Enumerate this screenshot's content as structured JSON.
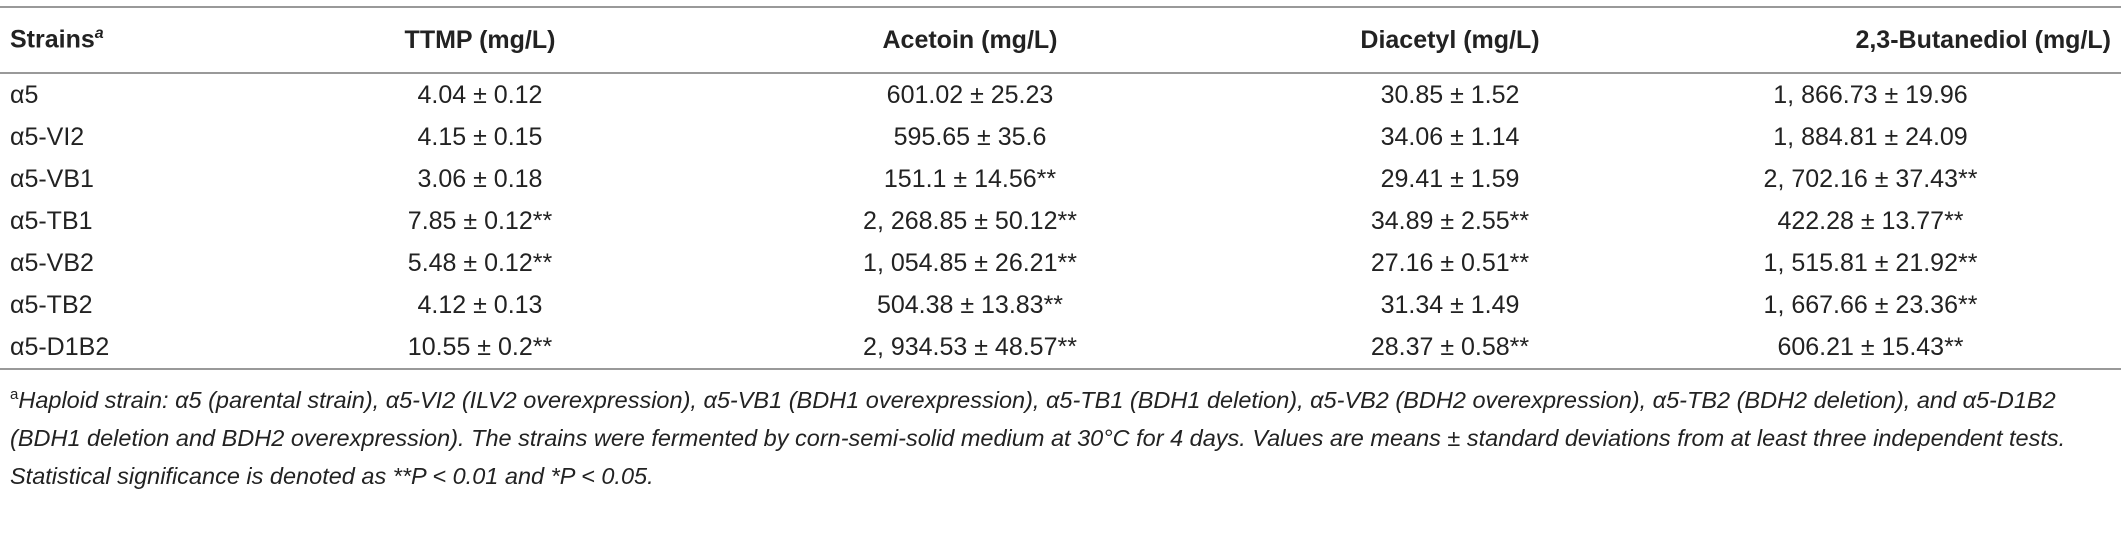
{
  "table": {
    "columns": [
      "Strains",
      "TTMP (mg/L)",
      "Acetoin (mg/L)",
      "Diacetyl (mg/L)",
      "2,3-Butanediol (mg/L)"
    ],
    "rows": [
      [
        "α5",
        "4.04 ± 0.12",
        "601.02 ± 25.23",
        "30.85 ± 1.52",
        "1, 866.73 ± 19.96"
      ],
      [
        "α5-VI2",
        "4.15 ± 0.15",
        "595.65 ± 35.6",
        "34.06 ± 1.14",
        "1, 884.81 ± 24.09"
      ],
      [
        "α5-VB1",
        "3.06 ± 0.18",
        "151.1 ± 14.56**",
        "29.41 ± 1.59",
        "2, 702.16 ± 37.43**"
      ],
      [
        "α5-TB1",
        "7.85 ± 0.12**",
        "2, 268.85 ± 50.12**",
        "34.89 ± 2.55**",
        "422.28 ± 13.77**"
      ],
      [
        "α5-VB2",
        "5.48 ± 0.12**",
        "1, 054.85 ± 26.21**",
        "27.16 ± 0.51**",
        "1, 515.81 ± 21.92**"
      ],
      [
        "α5-TB2",
        "4.12 ± 0.13",
        "504.38 ± 13.83**",
        "31.34 ± 1.49",
        "1, 667.66 ± 23.36**"
      ],
      [
        "α5-D1B2",
        "10.55 ± 0.2**",
        "2, 934.53 ± 48.57**",
        "28.37 ± 0.58**",
        "606.21 ± 15.43**"
      ]
    ]
  },
  "footnote": {
    "mark": "a",
    "text": "Haploid strain: α5 (parental strain), α5-VI2 (ILV2 overexpression), α5-VB1 (BDH1 overexpression), α5-TB1 (BDH1 deletion), α5-VB2 (BDH2 overexpression), α5-TB2 (BDH2 deletion), and α5-D1B2 (BDH1 deletion and BDH2 overexpression). The strains were fermented by corn-semi-solid medium at 30°C for 4 days. Values are means ± standard deviations from at least three independent tests. Statistical significance is denoted as **P < 0.01 and *P < 0.05."
  }
}
